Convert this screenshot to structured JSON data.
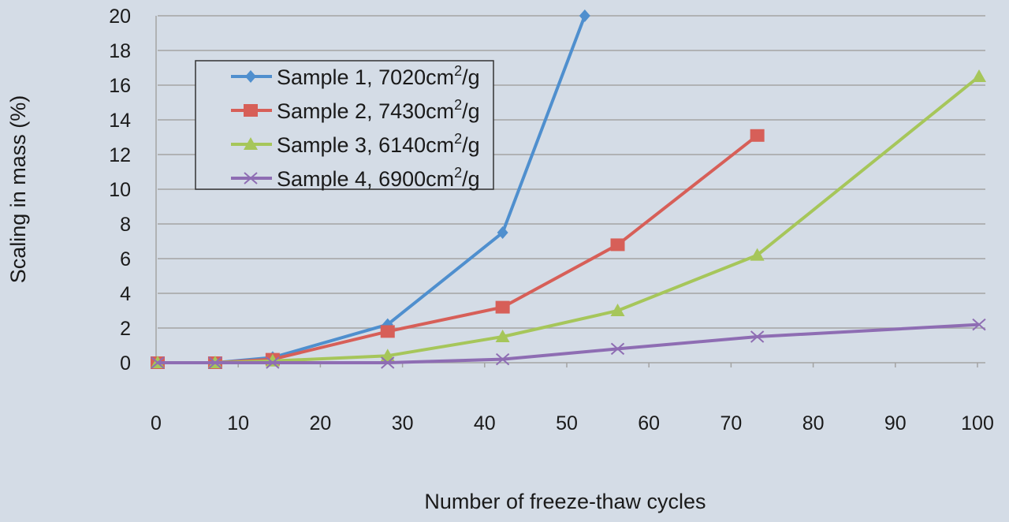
{
  "chart_data": {
    "type": "line",
    "title": "",
    "xlabel": "Number of freeze-thaw cycles",
    "ylabel": "Scaling in mass (%)",
    "xlim": [
      0,
      100
    ],
    "ylim": [
      0,
      20
    ],
    "xticks": [
      0,
      10,
      20,
      30,
      40,
      50,
      60,
      70,
      80,
      90,
      100
    ],
    "yticks": [
      0,
      2,
      4,
      6,
      8,
      10,
      12,
      14,
      16,
      18,
      20
    ],
    "grid": "horizontal",
    "legend_position": "top-left",
    "series": [
      {
        "name": "Sample 1, 7020cm²/g",
        "legend_main": "Sample 1, 7020cm",
        "legend_sup": "2",
        "legend_tail": "/g",
        "color": "#4f8fce",
        "marker": "diamond",
        "x": [
          0,
          7,
          14,
          28,
          42,
          52
        ],
        "y": [
          0,
          0,
          0.3,
          2.2,
          7.5,
          20
        ]
      },
      {
        "name": "Sample 2, 7430cm²/g",
        "legend_main": "Sample 2, 7430cm",
        "legend_sup": "2",
        "legend_tail": "/g",
        "color": "#d75f58",
        "marker": "square",
        "x": [
          0,
          7,
          14,
          28,
          42,
          56,
          73
        ],
        "y": [
          0,
          0,
          0.2,
          1.8,
          3.2,
          6.8,
          13.1
        ]
      },
      {
        "name": "Sample 3, 6140cm²/g",
        "legend_main": "Sample 3, 6140cm",
        "legend_sup": "2",
        "legend_tail": "/g",
        "color": "#a6c65a",
        "marker": "triangle",
        "x": [
          0,
          7,
          14,
          28,
          42,
          56,
          73,
          100
        ],
        "y": [
          0,
          0,
          0.1,
          0.4,
          1.5,
          3.0,
          6.2,
          16.5
        ]
      },
      {
        "name": "Sample 4, 6900cm²/g",
        "legend_main": "Sample 4, 6900cm",
        "legend_sup": "2",
        "legend_tail": "/g",
        "color": "#8e6db3",
        "marker": "x",
        "x": [
          0,
          7,
          14,
          28,
          42,
          56,
          73,
          100
        ],
        "y": [
          0,
          0,
          0,
          0,
          0.2,
          0.8,
          1.5,
          2.2
        ]
      }
    ]
  }
}
